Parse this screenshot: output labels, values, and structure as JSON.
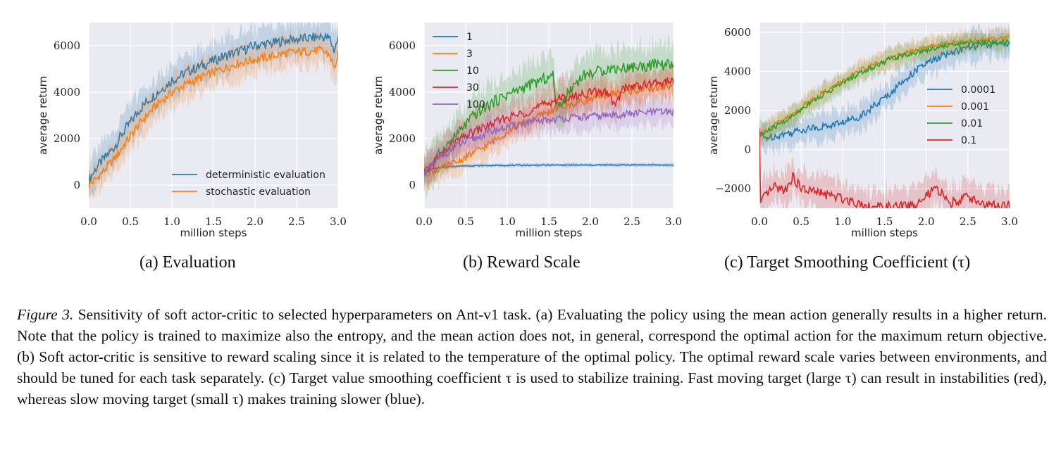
{
  "chart_data": [
    {
      "type": "line",
      "id": "a",
      "subcaption": "(a) Evaluation",
      "xlabel": "million steps",
      "ylabel": "average return",
      "xlim": [
        0,
        3
      ],
      "ylim": [
        -1000,
        7000
      ],
      "xticks": [
        "0.0",
        "0.5",
        "1.0",
        "1.5",
        "2.0",
        "2.5",
        "3.0"
      ],
      "yticks": [
        "0",
        "2000",
        "4000",
        "6000"
      ],
      "grid": true,
      "legend_position": "lower-right",
      "series": [
        {
          "name": "deterministic evaluation",
          "color": "#1f77b4",
          "band": 800,
          "x": [
            0,
            0.1,
            0.2,
            0.3,
            0.4,
            0.5,
            0.6,
            0.7,
            0.8,
            0.9,
            1.0,
            1.2,
            1.4,
            1.6,
            1.8,
            2.0,
            2.2,
            2.4,
            2.6,
            2.8,
            2.9,
            2.95,
            3.0
          ],
          "y": [
            200,
            800,
            1200,
            1600,
            2200,
            2700,
            3200,
            3600,
            3900,
            4200,
            4500,
            4900,
            5200,
            5500,
            5750,
            6000,
            6100,
            6250,
            6300,
            6400,
            6300,
            5800,
            6300
          ]
        },
        {
          "name": "stochastic evaluation",
          "color": "#ff7f0e",
          "band": 700,
          "x": [
            0,
            0.1,
            0.2,
            0.3,
            0.4,
            0.5,
            0.6,
            0.7,
            0.8,
            0.9,
            1.0,
            1.2,
            1.4,
            1.6,
            1.8,
            2.0,
            2.2,
            2.4,
            2.6,
            2.8,
            2.9,
            2.95,
            3.0
          ],
          "y": [
            0,
            300,
            700,
            1100,
            1600,
            2100,
            2600,
            3000,
            3400,
            3700,
            4000,
            4400,
            4700,
            5000,
            5250,
            5400,
            5550,
            5700,
            5750,
            5800,
            5600,
            5000,
            5600
          ]
        }
      ]
    },
    {
      "type": "line",
      "id": "b",
      "subcaption": "(b) Reward Scale",
      "xlabel": "million steps",
      "ylabel": "average return",
      "xlim": [
        0,
        3
      ],
      "ylim": [
        -1000,
        7000
      ],
      "xticks": [
        "0.0",
        "0.5",
        "1.0",
        "1.5",
        "2.0",
        "2.5",
        "3.0"
      ],
      "yticks": [
        "0",
        "2000",
        "4000",
        "6000"
      ],
      "grid": true,
      "legend_position": "upper-left",
      "series": [
        {
          "name": "1",
          "color": "#1f77b4",
          "band": 80,
          "x": [
            0,
            0.1,
            0.3,
            0.5,
            1.0,
            1.5,
            2.0,
            2.5,
            3.0
          ],
          "y": [
            500,
            700,
            800,
            830,
            850,
            860,
            860,
            870,
            860
          ]
        },
        {
          "name": "3",
          "color": "#ff7f0e",
          "band": 600,
          "x": [
            0,
            0.2,
            0.4,
            0.6,
            0.8,
            1.0,
            1.2,
            1.4,
            1.6,
            1.8,
            2.0,
            2.2,
            2.4,
            2.6,
            2.8,
            3.0
          ],
          "y": [
            500,
            700,
            1000,
            1400,
            1800,
            2300,
            2700,
            3000,
            3300,
            3500,
            3700,
            3900,
            4000,
            4100,
            4200,
            4300
          ]
        },
        {
          "name": "10",
          "color": "#2ca02c",
          "band": 900,
          "x": [
            0,
            0.2,
            0.4,
            0.6,
            0.8,
            1.0,
            1.2,
            1.4,
            1.55,
            1.6,
            1.8,
            1.9,
            2.0,
            2.2,
            2.4,
            2.6,
            2.8,
            3.0
          ],
          "y": [
            500,
            1400,
            2200,
            3000,
            3500,
            3900,
            4200,
            4500,
            4700,
            3300,
            4300,
            4700,
            4800,
            5000,
            5050,
            5100,
            5200,
            5150
          ]
        },
        {
          "name": "30",
          "color": "#d62728",
          "band": 700,
          "x": [
            0,
            0.2,
            0.4,
            0.6,
            0.8,
            1.0,
            1.2,
            1.4,
            1.6,
            1.8,
            2.0,
            2.2,
            2.3,
            2.4,
            2.6,
            2.8,
            3.0
          ],
          "y": [
            500,
            1300,
            1900,
            2300,
            2600,
            2900,
            3100,
            3400,
            3700,
            3800,
            4000,
            4000,
            3400,
            4200,
            4300,
            4400,
            4500
          ]
        },
        {
          "name": "100",
          "color": "#9467bd",
          "band": 600,
          "x": [
            0,
            0.2,
            0.4,
            0.6,
            0.8,
            1.0,
            1.2,
            1.4,
            1.6,
            1.8,
            2.0,
            2.2,
            2.4,
            2.6,
            2.8,
            3.0
          ],
          "y": [
            500,
            1200,
            1700,
            2000,
            2300,
            2500,
            2650,
            2750,
            2850,
            2900,
            2950,
            3000,
            3050,
            3100,
            3150,
            3150
          ]
        }
      ]
    },
    {
      "type": "line",
      "id": "c",
      "subcaption": "(c) Target Smoothing Coefficient (τ)",
      "xlabel": "million steps",
      "ylabel": "average return",
      "xlim": [
        0,
        3
      ],
      "ylim": [
        -3000,
        6500
      ],
      "xticks": [
        "0.0",
        "0.5",
        "1.0",
        "1.5",
        "2.0",
        "2.5",
        "3.0"
      ],
      "yticks": [
        "−2000",
        "0",
        "2000",
        "4000",
        "6000"
      ],
      "ytick_values": [
        -2000,
        0,
        2000,
        4000,
        6000
      ],
      "grid": true,
      "legend_position": "center-right",
      "series": [
        {
          "name": "0.0001",
          "color": "#1f77b4",
          "band": 700,
          "x": [
            0,
            0.05,
            0.2,
            0.4,
            0.6,
            0.8,
            1.0,
            1.2,
            1.4,
            1.6,
            1.8,
            2.0,
            2.2,
            2.4,
            2.6,
            2.8,
            3.0
          ],
          "y": [
            900,
            600,
            700,
            900,
            1100,
            1200,
            1400,
            1700,
            2300,
            3000,
            3800,
            4400,
            4800,
            5100,
            5300,
            5400,
            5450
          ]
        },
        {
          "name": "0.001",
          "color": "#ff7f0e",
          "band": 500,
          "x": [
            0,
            0.2,
            0.4,
            0.6,
            0.8,
            1.0,
            1.2,
            1.4,
            1.6,
            1.8,
            2.0,
            2.2,
            2.4,
            2.6,
            2.8,
            3.0
          ],
          "y": [
            800,
            1300,
            1800,
            2500,
            3000,
            3500,
            4000,
            4400,
            4700,
            5000,
            5200,
            5400,
            5500,
            5600,
            5700,
            5750
          ]
        },
        {
          "name": "0.01",
          "color": "#2ca02c",
          "band": 500,
          "x": [
            0,
            0.2,
            0.4,
            0.6,
            0.8,
            1.0,
            1.2,
            1.4,
            1.6,
            1.8,
            2.0,
            2.2,
            2.4,
            2.6,
            2.8,
            3.0
          ],
          "y": [
            700,
            1200,
            1700,
            2400,
            2900,
            3400,
            3900,
            4300,
            4700,
            4900,
            5100,
            5300,
            5400,
            5500,
            5500,
            5500
          ]
        },
        {
          "name": "0.1",
          "color": "#d62728",
          "band": 900,
          "x": [
            0,
            0.01,
            0.1,
            0.2,
            0.3,
            0.4,
            0.5,
            0.7,
            0.9,
            1.1,
            1.3,
            1.5,
            1.7,
            1.9,
            2.1,
            2.2,
            2.3,
            2.5,
            2.7,
            2.9,
            3.0
          ],
          "y": [
            1000,
            -2800,
            -2200,
            -1900,
            -2100,
            -1400,
            -2000,
            -2200,
            -2400,
            -2600,
            -2900,
            -2950,
            -2900,
            -2800,
            -2000,
            -2300,
            -2700,
            -2400,
            -2800,
            -2900,
            -2850
          ]
        }
      ]
    }
  ],
  "caption": {
    "lead": "Figure 3.",
    "text": "Sensitivity of soft actor-critic to selected hyperparameters on Ant-v1 task. (a) Evaluating the policy using the mean action generally results in a higher return. Note that the policy is trained to maximize also the entropy, and the mean action does not, in general, correspond the optimal action for the maximum return objective. (b) Soft actor-critic is sensitive to reward scaling since it is related to the temperature of the optimal policy. The optimal reward scale varies between environments, and should be tuned for each task separately. (c) Target value smoothing coefficient τ is used to stabilize training. Fast moving target (large τ) can result in instabilities (red), whereas slow moving target (small τ) makes training slower (blue)."
  }
}
